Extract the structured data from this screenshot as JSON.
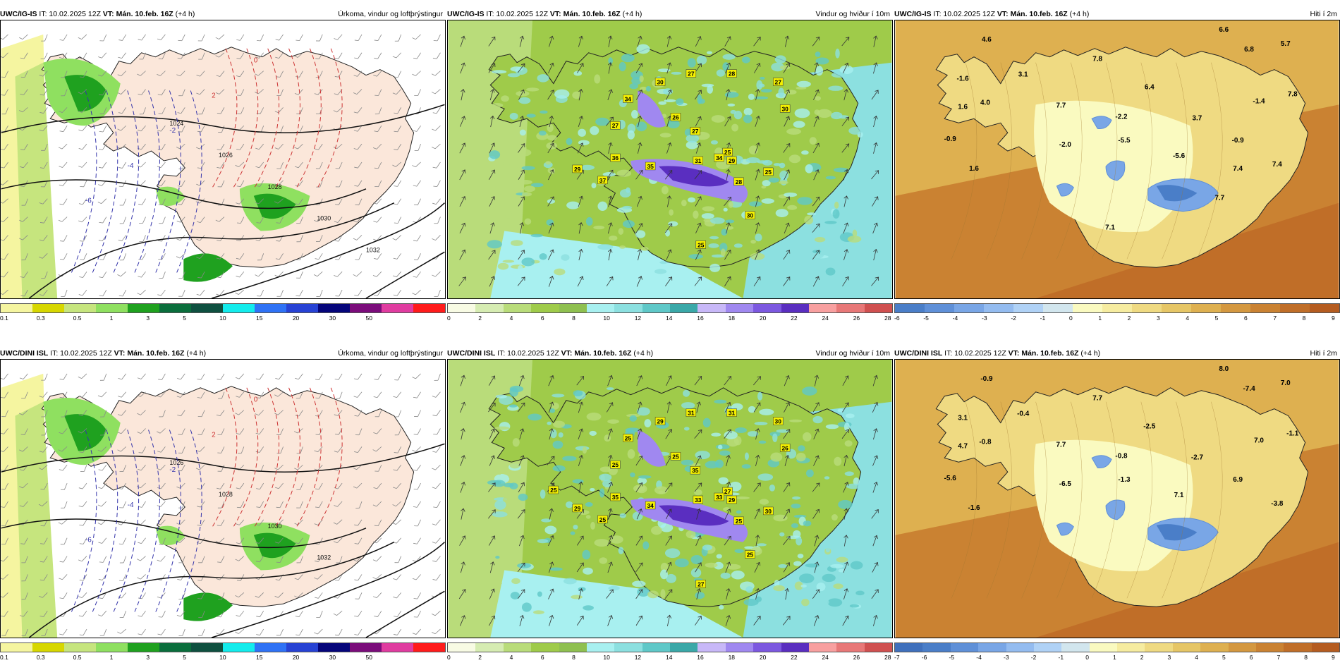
{
  "panels": [
    {
      "model": "UWC/IG-IS",
      "it": "IT: 10.02.2025 12Z",
      "vt": "VT: Mán. 10.feb. 16Z",
      "lead": "(+4 h)",
      "title": "Úrkoma, vindur og loftþrýstingur",
      "kind": "precip",
      "colorbar": {
        "colors": [
          "#f5f5a0",
          "#d7d700",
          "#c6e57e",
          "#8fe060",
          "#1fa11f",
          "#0a6e3c",
          "#0f5040",
          "#13ecec",
          "#2f72f5",
          "#2742d4",
          "#05057a",
          "#7b0c7b",
          "#e03ca0",
          "#ff1b1b"
        ],
        "ticks": [
          "0.1",
          "0.3",
          "0.5",
          "1",
          "3",
          "5",
          "10",
          "15",
          "20",
          "30",
          "50"
        ]
      },
      "isobars": [
        "1024",
        "1026",
        "1028",
        "1030",
        "1032"
      ],
      "temps": [
        "0",
        "2",
        "-2",
        "-4",
        "-6"
      ]
    },
    {
      "model": "UWC/IG-IS",
      "it": "IT: 10.02.2025 12Z",
      "vt": "VT: Mán. 10.feb. 16Z",
      "lead": "(+4 h)",
      "title": "Vindur og hviður í 10m",
      "kind": "wind",
      "colorbar": {
        "colors": [
          "#f8fbe4",
          "#d6ecb2",
          "#b9dc7a",
          "#9fcb4a",
          "#8fc050",
          "#a8f0f0",
          "#8ce0e0",
          "#5fc8c8",
          "#3aa8a8",
          "#c8b8f8",
          "#a088f0",
          "#7c58e0",
          "#5a2ec0",
          "#f8a0a0",
          "#e87878",
          "#d05050"
        ],
        "ticks": [
          "0",
          "2",
          "4",
          "6",
          "8",
          "10",
          "12",
          "14",
          "16",
          "18",
          "20",
          "22",
          "24",
          "26",
          "28"
        ]
      },
      "gusts": [
        "34",
        "30",
        "27",
        "27",
        "26",
        "27",
        "28",
        "25",
        "27",
        "30",
        "28",
        "29",
        "35",
        "36",
        "34",
        "31",
        "29",
        "25",
        "37",
        "30",
        "25"
      ]
    },
    {
      "model": "UWC/IG-IS",
      "it": "IT: 10.02.2025 12Z",
      "vt": "VT: Mán. 10.feb. 16Z",
      "lead": "(+4 h)",
      "title": "Hiti í 2m",
      "kind": "temp",
      "colorbar": {
        "colors": [
          "#4a7ec8",
          "#5f90d8",
          "#79a6e6",
          "#94bcf0",
          "#b0d2f6",
          "#d2e6ee",
          "#fafac0",
          "#f6eca0",
          "#efda82",
          "#e6c666",
          "#deb050",
          "#d49840",
          "#ca8232",
          "#c06e28",
          "#b55c20"
        ],
        "ticks": [
          "-6",
          "-5",
          "-4",
          "-3",
          "-2",
          "-1",
          "0",
          "1",
          "2",
          "3",
          "4",
          "5",
          "6",
          "7",
          "8",
          "9"
        ]
      },
      "values": [
        "4.6",
        "6.6",
        "5.7",
        "6.8",
        "-1.6",
        "3.1",
        "7.8",
        "1.6",
        "4.0",
        "6.4",
        "7.7",
        "-1.4",
        "7.8",
        "-2.2",
        "3.7",
        "-0.9",
        "-2.0",
        "-5.5",
        "-5.6",
        "-0.9",
        "7.4",
        "1.6",
        "7.4",
        "7.7",
        "7.1"
      ]
    },
    {
      "model": "UWC/DINI ISL",
      "it": "IT: 10.02.2025 12Z",
      "vt": "VT: Mán. 10.feb. 16Z",
      "lead": "(+4 h)",
      "title": "Úrkoma, vindur og loftþrýstingur",
      "kind": "precip",
      "colorbar": {
        "colors": [
          "#f5f5a0",
          "#d7d700",
          "#c6e57e",
          "#8fe060",
          "#1fa11f",
          "#0a6e3c",
          "#0f5040",
          "#13ecec",
          "#2f72f5",
          "#2742d4",
          "#05057a",
          "#7b0c7b",
          "#e03ca0",
          "#ff1b1b"
        ],
        "ticks": [
          "0.1",
          "0.3",
          "0.5",
          "1",
          "3",
          "5",
          "10",
          "15",
          "20",
          "30",
          "50"
        ]
      },
      "isobars": [
        "1026",
        "1028",
        "1030",
        "1032"
      ],
      "temps": [
        "0",
        "2",
        "-2",
        "-4",
        "-6"
      ]
    },
    {
      "model": "UWC/DINI ISL",
      "it": "IT: 10.02.2025 12Z",
      "vt": "VT: Mán. 10.feb. 16Z",
      "lead": "(+4 h)",
      "title": "Vindur og hviður í 10m",
      "kind": "wind",
      "colorbar": {
        "colors": [
          "#f8fbe4",
          "#d6ecb2",
          "#b9dc7a",
          "#9fcb4a",
          "#8fc050",
          "#a8f0f0",
          "#8ce0e0",
          "#5fc8c8",
          "#3aa8a8",
          "#c8b8f8",
          "#a088f0",
          "#7c58e0",
          "#5a2ec0",
          "#f8a0a0",
          "#e87878",
          "#d05050"
        ],
        "ticks": [
          "0",
          "2",
          "4",
          "6",
          "8",
          "10",
          "12",
          "14",
          "16",
          "18",
          "20",
          "22",
          "24",
          "26",
          "28"
        ]
      },
      "gusts": [
        "25",
        "29",
        "31",
        "25",
        "25",
        "35",
        "31",
        "27",
        "30",
        "26",
        "25",
        "29",
        "34",
        "35",
        "33",
        "33",
        "29",
        "30",
        "25",
        "25",
        "27",
        "25"
      ]
    },
    {
      "model": "UWC/DINI ISL",
      "it": "IT: 10.02.2025 12Z",
      "vt": "VT: Mán. 10.feb. 16Z",
      "lead": "(+4 h)",
      "title": "Hiti í 2m",
      "kind": "temp",
      "colorbar": {
        "colors": [
          "#3f70bc",
          "#4a7ec8",
          "#5f90d8",
          "#79a6e6",
          "#94bcf0",
          "#b0d2f6",
          "#d2e6ee",
          "#fafac0",
          "#f6eca0",
          "#efda82",
          "#e6c666",
          "#deb050",
          "#d49840",
          "#ca8232",
          "#c06e28",
          "#b55c20"
        ],
        "ticks": [
          "-7",
          "-6",
          "-5",
          "-4",
          "-3",
          "-2",
          "-1",
          "0",
          "1",
          "2",
          "3",
          "4",
          "5",
          "6",
          "7",
          "8",
          "9"
        ]
      },
      "values": [
        "-0.9",
        "8.0",
        "7.0",
        "-7.4",
        "3.1",
        "-0.4",
        "7.7",
        "4.7",
        "-0.8",
        "-2.5",
        "7.7",
        "7.0",
        "-1.1",
        "-0.8",
        "-2.7",
        "-5.6",
        "-6.5",
        "-1.3",
        "7.1",
        "6.9",
        "-3.8",
        "-1.6"
      ]
    }
  ]
}
